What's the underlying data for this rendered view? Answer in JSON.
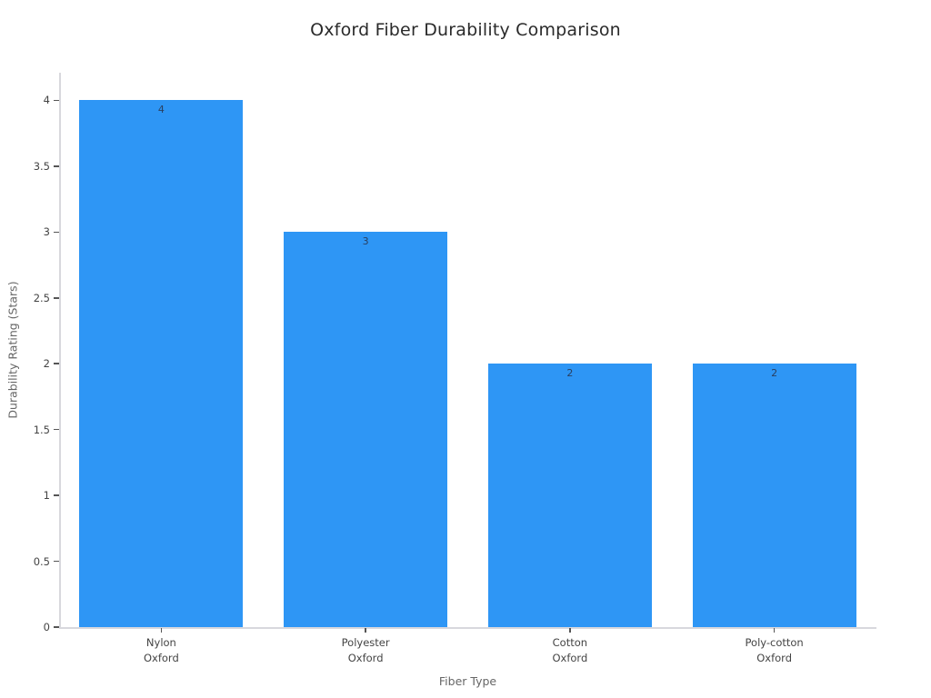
{
  "chart_data": {
    "type": "bar",
    "title": "Oxford Fiber Durability Comparison",
    "xlabel": "Fiber Type",
    "ylabel": "Durability Rating (Stars)",
    "categories": [
      [
        "Nylon",
        "Oxford"
      ],
      [
        "Polyester",
        "Oxford"
      ],
      [
        "Cotton",
        "Oxford"
      ],
      [
        "Poly-cotton",
        "Oxford"
      ]
    ],
    "values": [
      4,
      3,
      2,
      2
    ],
    "bar_value_labels": [
      "4",
      "3",
      "2",
      "2"
    ],
    "ytick_values": [
      0,
      0.5,
      1,
      1.5,
      2,
      2.5,
      3,
      3.5,
      4
    ],
    "ytick_labels": [
      "0",
      "0.5",
      "1",
      "1.5",
      "2",
      "2.5",
      "3",
      "3.5",
      "4"
    ],
    "ylim": [
      0,
      4.21
    ],
    "grid": false,
    "legend_position": "none"
  },
  "colors": {
    "bar": "#2e96f5",
    "title_text": "#2a2a2a",
    "axis_title_text": "#666666",
    "tick_text": "#444444",
    "axis_line": "#d8d8dd",
    "value_label_text": "#2a3f5f"
  }
}
